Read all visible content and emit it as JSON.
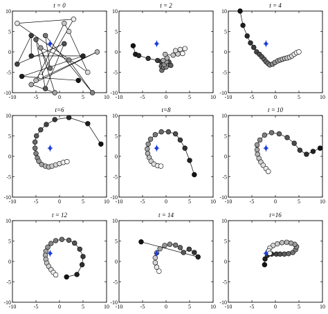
{
  "chart_data": [
    {
      "type": "scatter",
      "title": "t = 0",
      "xlim": [
        -10,
        10
      ],
      "ylim": [
        -10,
        10
      ],
      "xticks": [
        -10,
        -5,
        0,
        5,
        10
      ],
      "yticks": [
        10,
        5,
        0,
        -5,
        -10
      ],
      "target": [
        -2,
        2
      ],
      "points": [
        [
          4,
          -7
        ],
        [
          -8,
          -6
        ],
        [
          5,
          -1
        ],
        [
          -6,
          -1
        ],
        [
          -6,
          4
        ],
        [
          -9,
          -3
        ],
        [
          1,
          2
        ],
        [
          -3,
          -9
        ],
        [
          -5,
          3
        ],
        [
          -2,
          -4
        ],
        [
          -3,
          4
        ],
        [
          7,
          -10
        ],
        [
          2,
          -2
        ],
        [
          -4,
          1
        ],
        [
          -1,
          -10
        ],
        [
          -6,
          -8
        ],
        [
          8,
          0
        ],
        [
          -5,
          -7
        ],
        [
          1,
          7
        ],
        [
          2,
          5
        ],
        [
          6,
          -5
        ],
        [
          -9,
          7
        ],
        [
          3,
          8
        ],
        [
          -4,
          -6
        ]
      ]
    },
    {
      "type": "scatter",
      "title": "t = 2",
      "xlim": [
        -10,
        10
      ],
      "ylim": [
        -10,
        10
      ],
      "xticks": [
        -10,
        -5,
        0,
        5,
        10
      ],
      "yticks": [
        10,
        5,
        0,
        -5,
        -10
      ],
      "target": [
        -2,
        2
      ],
      "points": [
        [
          -7,
          1.5
        ],
        [
          -6.5,
          -0.6
        ],
        [
          -5.8,
          -0.9
        ],
        [
          -3.8,
          -1.6
        ],
        [
          -1.8,
          -2.1
        ],
        [
          -1,
          -2.4
        ],
        [
          0.6,
          -2.5
        ],
        [
          1,
          -3.3
        ],
        [
          -1,
          -3.5
        ],
        [
          -0.9,
          -4.5
        ],
        [
          -0.5,
          -3.8
        ],
        [
          0,
          -3.7
        ],
        [
          -0.4,
          -3.1
        ],
        [
          0.1,
          -2.4
        ],
        [
          -0.6,
          -2.1
        ],
        [
          0.2,
          -1.5
        ],
        [
          -0.2,
          -0.6
        ],
        [
          1.5,
          -0.8
        ],
        [
          2.5,
          -0.5
        ],
        [
          2,
          0.3
        ],
        [
          3,
          0.6
        ],
        [
          4,
          0.8
        ],
        [
          3.5,
          -0.4
        ]
      ]
    },
    {
      "type": "scatter",
      "title": "t = 4",
      "xlim": [
        -10,
        10
      ],
      "ylim": [
        -10,
        10
      ],
      "xticks": [
        -10,
        -5,
        0,
        5,
        10
      ],
      "yticks": [
        10,
        5,
        0,
        -5,
        -10
      ],
      "target": [
        -2,
        2
      ],
      "points": [
        [
          -7.5,
          10
        ],
        [
          -6.9,
          6.5
        ],
        [
          -6,
          3.9
        ],
        [
          -5.3,
          2.2
        ],
        [
          -4.6,
          1.1
        ],
        [
          -4,
          0
        ],
        [
          -3.4,
          -0.6
        ],
        [
          -2.9,
          -1.2
        ],
        [
          -2.4,
          -1.8
        ],
        [
          -2,
          -2.4
        ],
        [
          -1.6,
          -2.8
        ],
        [
          -1.2,
          -3.2
        ],
        [
          -0.6,
          -3
        ],
        [
          -0.1,
          -2.6
        ],
        [
          0.5,
          -2.2
        ],
        [
          1,
          -2
        ],
        [
          1.5,
          -1.8
        ],
        [
          2,
          -1.6
        ],
        [
          2.5,
          -1.5
        ],
        [
          3,
          -1.3
        ],
        [
          3.5,
          -1
        ],
        [
          4,
          -0.6
        ],
        [
          4.5,
          -0.2
        ],
        [
          5,
          0
        ]
      ]
    },
    {
      "type": "scatter",
      "title": "t=6",
      "xlim": [
        -10,
        10
      ],
      "ylim": [
        -10,
        10
      ],
      "xticks": [
        -10,
        -5,
        0,
        5,
        10
      ],
      "yticks": [
        10,
        5,
        0,
        -5,
        -10
      ],
      "target": [
        -2,
        2
      ],
      "points": [
        [
          8.8,
          3
        ],
        [
          6,
          8
        ],
        [
          2,
          9.5
        ],
        [
          -1,
          9
        ],
        [
          -2.8,
          7.8
        ],
        [
          -4,
          6.5
        ],
        [
          -4.9,
          5
        ],
        [
          -5.2,
          3.5
        ],
        [
          -5.2,
          2
        ],
        [
          -5,
          0.7
        ],
        [
          -4.7,
          -0.4
        ],
        [
          -4.4,
          -1.2
        ],
        [
          -3.8,
          -2
        ],
        [
          -3,
          -2.4
        ],
        [
          -2.3,
          -2.6
        ],
        [
          -1.6,
          -2.4
        ],
        [
          -0.8,
          -2.1
        ],
        [
          0,
          -1.8
        ],
        [
          0.8,
          -1.5
        ],
        [
          1.6,
          -1.3
        ]
      ]
    },
    {
      "type": "scatter",
      "title": "t=8",
      "xlim": [
        -10,
        10
      ],
      "ylim": [
        -10,
        10
      ],
      "xticks": [
        -10,
        -5,
        0,
        5,
        10
      ],
      "yticks": [
        10,
        5,
        0,
        -5,
        -10
      ],
      "target": [
        -2,
        2
      ],
      "points": [
        [
          6,
          -4.5
        ],
        [
          5,
          -1
        ],
        [
          4,
          2
        ],
        [
          3,
          4
        ],
        [
          2,
          5.5
        ],
        [
          0.5,
          6
        ],
        [
          -1,
          6
        ],
        [
          -2.3,
          5.3
        ],
        [
          -3.3,
          4.2
        ],
        [
          -3.8,
          3
        ],
        [
          -4,
          1.8
        ],
        [
          -3.9,
          0.7
        ],
        [
          -3.6,
          -0.3
        ],
        [
          -3.2,
          -1.2
        ],
        [
          -2.6,
          -1.9
        ],
        [
          -1.8,
          -2.3
        ],
        [
          -1.1,
          -2.4
        ]
      ]
    },
    {
      "type": "scatter",
      "title": "t = 10",
      "xlim": [
        -10,
        10
      ],
      "ylim": [
        -10,
        10
      ],
      "xticks": [
        -10,
        -5,
        0,
        5,
        10
      ],
      "yticks": [
        10,
        5,
        0,
        -5,
        -10
      ],
      "target": [
        -2,
        2
      ],
      "points": [
        [
          9.5,
          2
        ],
        [
          8,
          1.2
        ],
        [
          6.6,
          0.5
        ],
        [
          5.2,
          1.5
        ],
        [
          4,
          3.2
        ],
        [
          2.5,
          4.6
        ],
        [
          0.8,
          5.5
        ],
        [
          -0.8,
          5.8
        ],
        [
          -2.3,
          5.2
        ],
        [
          -3.3,
          4
        ],
        [
          -3.9,
          2.8
        ],
        [
          -3.9,
          1.6
        ],
        [
          -3.8,
          0.5
        ],
        [
          -3.5,
          -0.5
        ],
        [
          -3.1,
          -1.4
        ],
        [
          -2.6,
          -2.2
        ],
        [
          -2,
          -3
        ],
        [
          -1.5,
          -3.7
        ]
      ]
    },
    {
      "type": "scatter",
      "title": "t = 12",
      "xlim": [
        -10,
        10
      ],
      "ylim": [
        -10,
        10
      ],
      "xticks": [
        -10,
        -5,
        0,
        5,
        10
      ],
      "yticks": [
        10,
        5,
        0,
        -5,
        -10
      ],
      "target": [
        -2,
        2
      ],
      "points": [
        [
          1.5,
          -3.8
        ],
        [
          3.7,
          -3.2
        ],
        [
          4.8,
          -0.8
        ],
        [
          5,
          1.2
        ],
        [
          4.3,
          3
        ],
        [
          3.2,
          4.5
        ],
        [
          2,
          5.2
        ],
        [
          0.5,
          5.4
        ],
        [
          -0.8,
          5.1
        ],
        [
          -1.8,
          4.4
        ],
        [
          -2.5,
          3.5
        ],
        [
          -2.9,
          2.5
        ],
        [
          -3,
          1.5
        ],
        [
          -2.9,
          0.5
        ],
        [
          -2.7,
          -0.4
        ],
        [
          -2.3,
          -1.2
        ],
        [
          -1.8,
          -2
        ],
        [
          -1.3,
          -2.7
        ],
        [
          -0.8,
          -3.3
        ]
      ]
    },
    {
      "type": "scatter",
      "title": "t = 14",
      "xlim": [
        -10,
        10
      ],
      "ylim": [
        -10,
        10
      ],
      "xticks": [
        -10,
        -5,
        0,
        5,
        10
      ],
      "yticks": [
        10,
        5,
        0,
        -5,
        -10
      ],
      "target": [
        -2,
        2
      ],
      "points": [
        [
          -5.3,
          4.8
        ],
        [
          6.8,
          1.1
        ],
        [
          6,
          2.2
        ],
        [
          4.9,
          3
        ],
        [
          3.7,
          2.2
        ],
        [
          3,
          3.4
        ],
        [
          2,
          4
        ],
        [
          0.8,
          4.2
        ],
        [
          -0.3,
          3.9
        ],
        [
          -1.3,
          3.1
        ],
        [
          -2,
          2.1
        ],
        [
          -2.3,
          0.9
        ],
        [
          -2.3,
          -0.3
        ],
        [
          -2,
          -1.4
        ],
        [
          -1.5,
          -2.4
        ]
      ]
    },
    {
      "type": "scatter",
      "title": "t=16",
      "xlim": [
        -10,
        10
      ],
      "ylim": [
        -10,
        10
      ],
      "xticks": [
        -10,
        -5,
        0,
        5,
        10
      ],
      "yticks": [
        10,
        5,
        0,
        -5,
        -10
      ],
      "target": [
        -2,
        2
      ],
      "points": [
        [
          -2.3,
          -0.8
        ],
        [
          -2.2,
          0.6
        ],
        [
          -1.7,
          1.5
        ],
        [
          -0.8,
          1.8
        ],
        [
          0.2,
          1.8
        ],
        [
          1,
          1.8
        ],
        [
          1.9,
          1.8
        ],
        [
          2.8,
          1.9
        ],
        [
          3.7,
          2.2
        ],
        [
          4.3,
          2.9
        ],
        [
          4.5,
          3.6
        ],
        [
          4.1,
          4.2
        ],
        [
          3.3,
          4.5
        ],
        [
          2.4,
          4.7
        ],
        [
          1.4,
          4.6
        ],
        [
          0.4,
          4.3
        ],
        [
          -0.5,
          3.9
        ],
        [
          -1.2,
          3.3
        ],
        [
          -1.4,
          2.6
        ],
        [
          -1.2,
          2
        ]
      ]
    }
  ],
  "style": {
    "line_color": "#000000",
    "marker_edge": "#000000",
    "target_color": "#1f3fd6",
    "target_marker": "plus-diamond",
    "point_shading": "dark-to-light along chain"
  }
}
